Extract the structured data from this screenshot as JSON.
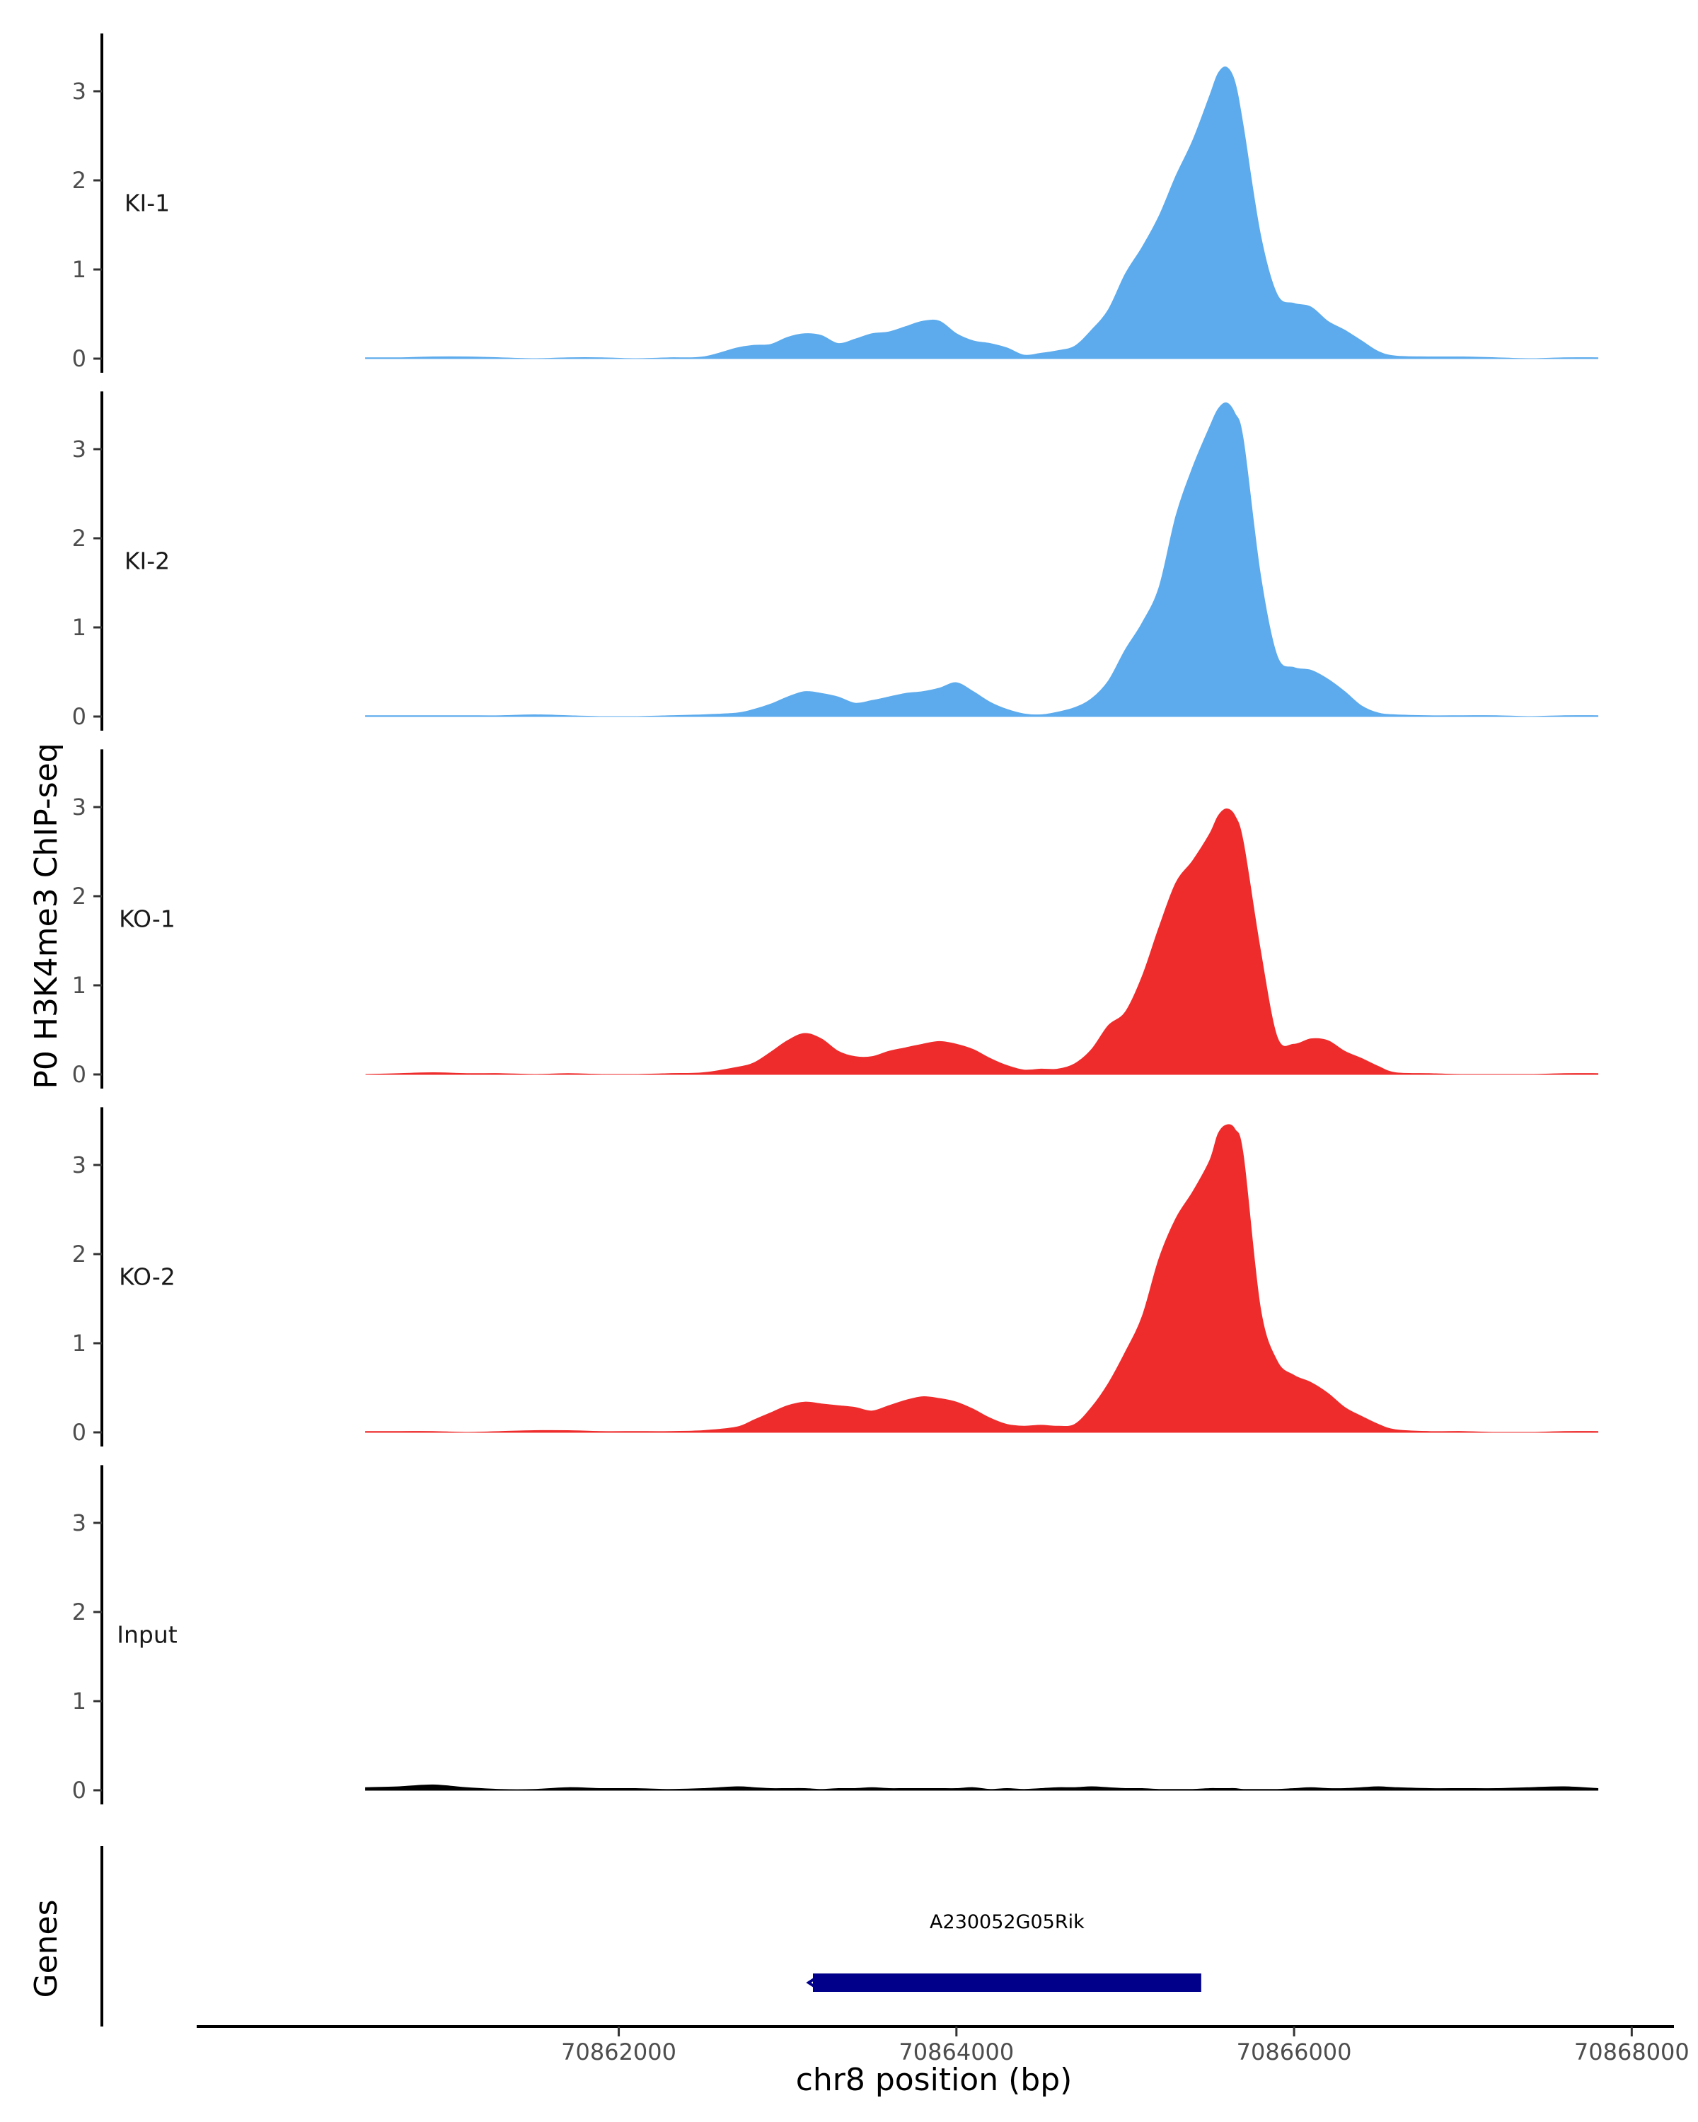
{
  "chart_data": {
    "type": "area",
    "title": "",
    "ylabel": "P0 H3K4me3 ChIP-seq",
    "xlabel": "chr8 position (bp)",
    "xlim": [
      70859500,
      70868250
    ],
    "ylim": [
      0,
      3.6
    ],
    "y_ticks": [
      0,
      1,
      2,
      3
    ],
    "x_ticks": [
      70862000,
      70864000,
      70866000,
      70868000
    ],
    "x_tick_labels": [
      "70862000",
      "70864000",
      "70866000",
      "70868000"
    ],
    "x": [
      70860500,
      70860700,
      70860900,
      70861100,
      70861300,
      70861500,
      70861700,
      70861900,
      70862100,
      70862300,
      70862500,
      70862700,
      70862800,
      70862900,
      70863000,
      70863100,
      70863200,
      70863300,
      70863400,
      70863500,
      70863600,
      70863700,
      70863800,
      70863900,
      70864000,
      70864100,
      70864200,
      70864300,
      70864400,
      70864500,
      70864600,
      70864700,
      70864800,
      70864900,
      70865000,
      70865100,
      70865200,
      70865300,
      70865400,
      70865500,
      70865550,
      70865600,
      70865650,
      70865700,
      70865800,
      70865900,
      70866000,
      70866100,
      70866200,
      70866300,
      70866400,
      70866500,
      70866600,
      70866800,
      70867000,
      70867200,
      70867400,
      70867600,
      70867800
    ],
    "series": [
      {
        "name": "KI-1",
        "color": "#5dabec",
        "values": [
          0.01,
          0.01,
          0.02,
          0.02,
          0.01,
          0.0,
          0.01,
          0.01,
          0.0,
          0.01,
          0.02,
          0.12,
          0.15,
          0.16,
          0.24,
          0.28,
          0.26,
          0.17,
          0.22,
          0.28,
          0.3,
          0.36,
          0.42,
          0.42,
          0.28,
          0.2,
          0.17,
          0.12,
          0.04,
          0.06,
          0.09,
          0.14,
          0.32,
          0.55,
          0.95,
          1.25,
          1.6,
          2.05,
          2.45,
          2.95,
          3.2,
          3.27,
          3.1,
          2.6,
          1.4,
          0.72,
          0.62,
          0.58,
          0.42,
          0.32,
          0.2,
          0.08,
          0.03,
          0.02,
          0.02,
          0.01,
          0.0,
          0.01,
          0.01
        ]
      },
      {
        "name": "KI-2",
        "color": "#5dabec",
        "values": [
          0.01,
          0.01,
          0.01,
          0.01,
          0.01,
          0.02,
          0.01,
          0.0,
          0.0,
          0.01,
          0.02,
          0.04,
          0.08,
          0.14,
          0.22,
          0.28,
          0.26,
          0.22,
          0.15,
          0.18,
          0.22,
          0.26,
          0.28,
          0.32,
          0.38,
          0.28,
          0.16,
          0.08,
          0.03,
          0.02,
          0.05,
          0.1,
          0.2,
          0.4,
          0.75,
          1.05,
          1.45,
          2.25,
          2.8,
          3.25,
          3.45,
          3.52,
          3.4,
          3.1,
          1.6,
          0.68,
          0.55,
          0.52,
          0.42,
          0.28,
          0.12,
          0.04,
          0.02,
          0.01,
          0.01,
          0.01,
          0.0,
          0.01,
          0.01
        ]
      },
      {
        "name": "KO-1",
        "color": "#ee2c2c",
        "values": [
          0.0,
          0.01,
          0.02,
          0.01,
          0.01,
          0.0,
          0.01,
          0.0,
          0.0,
          0.01,
          0.02,
          0.08,
          0.13,
          0.25,
          0.38,
          0.46,
          0.4,
          0.26,
          0.2,
          0.2,
          0.26,
          0.3,
          0.34,
          0.37,
          0.34,
          0.28,
          0.18,
          0.1,
          0.05,
          0.06,
          0.06,
          0.12,
          0.28,
          0.55,
          0.7,
          1.1,
          1.65,
          2.15,
          2.4,
          2.7,
          2.9,
          2.98,
          2.9,
          2.6,
          1.4,
          0.42,
          0.34,
          0.4,
          0.38,
          0.26,
          0.18,
          0.09,
          0.02,
          0.01,
          0.0,
          0.0,
          0.0,
          0.01,
          0.01
        ]
      },
      {
        "name": "KO-2",
        "color": "#ee2c2c",
        "values": [
          0.01,
          0.01,
          0.01,
          0.0,
          0.01,
          0.02,
          0.02,
          0.01,
          0.01,
          0.01,
          0.02,
          0.06,
          0.14,
          0.22,
          0.3,
          0.34,
          0.32,
          0.3,
          0.28,
          0.24,
          0.3,
          0.36,
          0.4,
          0.38,
          0.34,
          0.26,
          0.16,
          0.09,
          0.07,
          0.08,
          0.07,
          0.09,
          0.28,
          0.55,
          0.9,
          1.3,
          1.95,
          2.4,
          2.7,
          3.05,
          3.35,
          3.45,
          3.4,
          3.1,
          1.4,
          0.8,
          0.64,
          0.56,
          0.44,
          0.28,
          0.18,
          0.09,
          0.03,
          0.01,
          0.01,
          0.0,
          0.0,
          0.01,
          0.01
        ]
      },
      {
        "name": "Input",
        "color": "#000000",
        "values": [
          0.03,
          0.04,
          0.06,
          0.03,
          0.01,
          0.01,
          0.03,
          0.02,
          0.02,
          0.01,
          0.02,
          0.04,
          0.03,
          0.02,
          0.02,
          0.02,
          0.01,
          0.02,
          0.02,
          0.03,
          0.02,
          0.02,
          0.02,
          0.02,
          0.02,
          0.03,
          0.01,
          0.02,
          0.01,
          0.02,
          0.03,
          0.03,
          0.04,
          0.03,
          0.02,
          0.02,
          0.01,
          0.01,
          0.01,
          0.02,
          0.02,
          0.02,
          0.02,
          0.01,
          0.01,
          0.01,
          0.02,
          0.03,
          0.02,
          0.02,
          0.03,
          0.04,
          0.03,
          0.02,
          0.02,
          0.02,
          0.03,
          0.04,
          0.02
        ]
      }
    ],
    "genes": {
      "label": "Genes",
      "items": [
        {
          "name": "A230052G05Rik",
          "start": 70863150,
          "end": 70865450,
          "strand": "-",
          "color": "#00008b"
        }
      ]
    }
  }
}
